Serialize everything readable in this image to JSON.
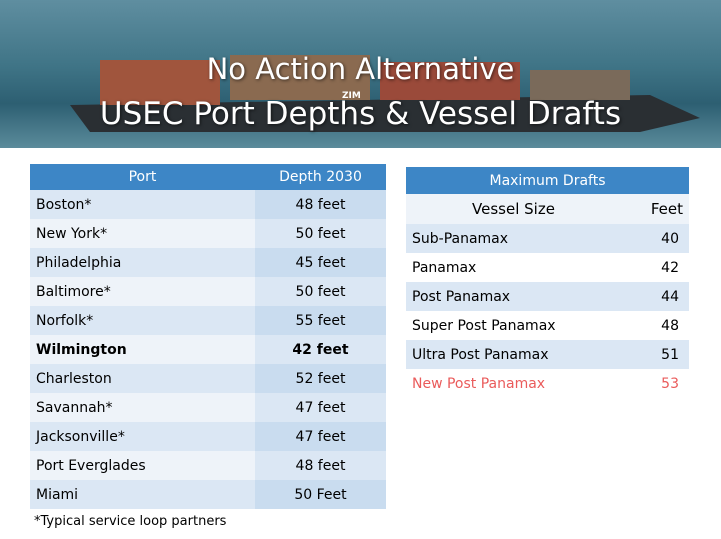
{
  "header": {
    "title_line1": "No Action Alternative",
    "logo": "ZIM",
    "title_line2": "USEC Port Depths & Vessel Drafts"
  },
  "port_table": {
    "columns": [
      "Port",
      "Depth 2030"
    ],
    "rows": [
      [
        "Boston*",
        "48 feet"
      ],
      [
        "New York*",
        "50 feet"
      ],
      [
        "Philadelphia",
        "45 feet"
      ],
      [
        "Baltimore*",
        "50 feet"
      ],
      [
        "Norfolk*",
        "55 feet"
      ],
      [
        "Wilmington",
        "42 feet"
      ],
      [
        "Charleston",
        "52 feet"
      ],
      [
        "Savannah*",
        "47 feet"
      ],
      [
        "Jacksonville*",
        "47 feet"
      ],
      [
        "Port Everglades",
        "48 feet"
      ],
      [
        "Miami",
        "50 Feet"
      ]
    ]
  },
  "drafts_table": {
    "title": "Maximum Drafts",
    "columns": [
      "Vessel Size",
      "Feet"
    ],
    "rows": [
      [
        "Sub-Panamax",
        40
      ],
      [
        "Panamax",
        42
      ],
      [
        "Post Panamax",
        44
      ],
      [
        "Super Post Panamax",
        48
      ],
      [
        "Ultra Post Panamax",
        51
      ],
      [
        "New Post Panamax",
        53
      ]
    ]
  },
  "footnote": "*Typical service loop partners"
}
